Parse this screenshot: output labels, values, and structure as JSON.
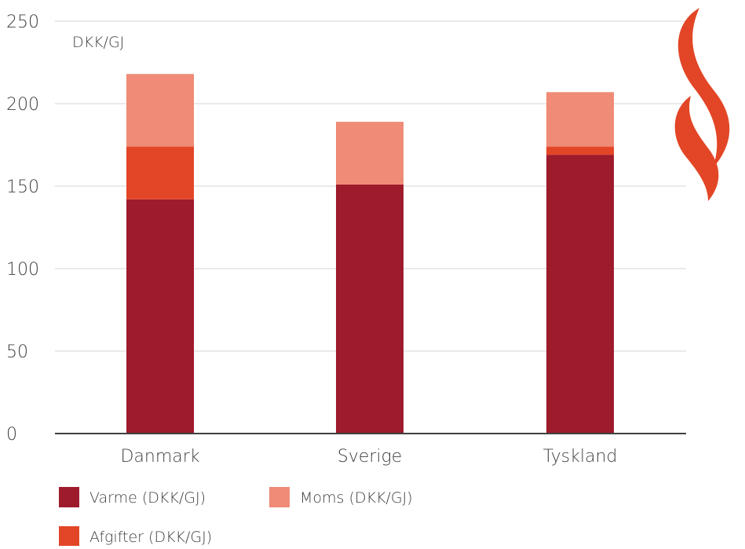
{
  "chart_data": {
    "type": "bar",
    "stacked": true,
    "unit_label": "DKK/GJ",
    "categories": [
      "Danmark",
      "Sverige",
      "Tyskland"
    ],
    "series": [
      {
        "name": "Varme (DKK/GJ)",
        "values": [
          142,
          151,
          169
        ],
        "color": "#9e1b2c"
      },
      {
        "name": "Afgifter (DKK/GJ)",
        "values": [
          32,
          0,
          5
        ],
        "color": "#e34626"
      },
      {
        "name": "Moms (DKK/GJ)",
        "values": [
          44,
          38,
          33
        ],
        "color": "#ef8b76"
      }
    ],
    "ylim": [
      0,
      250
    ],
    "yticks": [
      0,
      50,
      100,
      150,
      200,
      250
    ],
    "grid": true,
    "legend_position": "bottom",
    "logo": {
      "name": "flame-icon",
      "color": "#e34626"
    }
  }
}
